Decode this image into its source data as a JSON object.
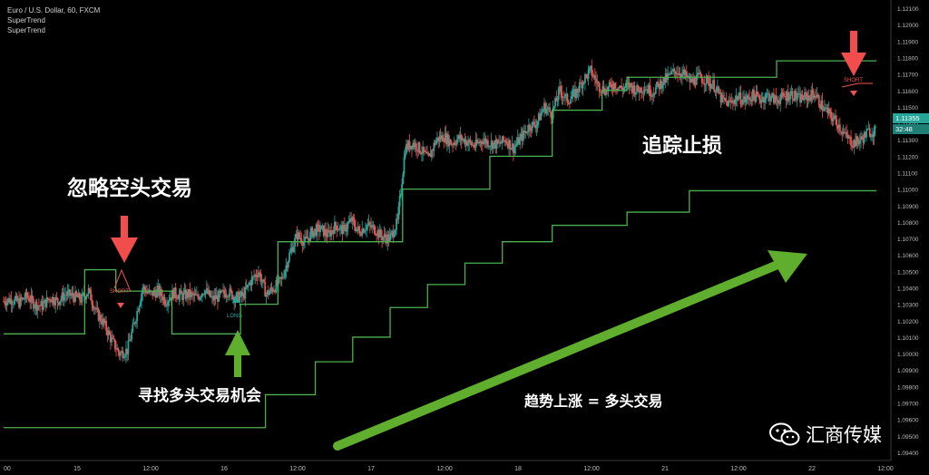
{
  "header": {
    "symbol_line": "Euro / U.S. Dollar, 60, FXCM",
    "indicators": [
      "SuperTrend",
      "SuperTrend"
    ]
  },
  "annotations": {
    "ignore_short": "忽略空头交易",
    "find_long": "寻找多头交易机会",
    "trailing_stop": "追踪止损",
    "trend_up": "趋势上涨 = 多头交易",
    "short_label_1": "SHORT",
    "long_label": "LONG",
    "short_label_2": "SHORT"
  },
  "price_tags": {
    "last_price": "1.11355",
    "countdown": "32:48"
  },
  "watermark": {
    "text": "汇商传媒",
    "icon": "wechat-icon"
  },
  "colors": {
    "background": "#000000",
    "up_candle": "#26a69a",
    "down_candle": "#ef5350",
    "supertrend": "#4caf50",
    "annotation_red": "#f24d4d",
    "annotation_green": "#5fae2e",
    "axis_text": "#bdbdbd"
  },
  "chart_data": {
    "type": "candlestick",
    "title": "Euro / U.S. Dollar, 60, FXCM",
    "y_ticks": [
      "1.12100",
      "1.12000",
      "1.11900",
      "1.11800",
      "1.11700",
      "1.11600",
      "1.11500",
      "1.11400",
      "1.11300",
      "1.11200",
      "1.11100",
      "1.11000",
      "1.10900",
      "1.10800",
      "1.10700",
      "1.10600",
      "1.10500",
      "1.10400",
      "1.10300",
      "1.10200",
      "1.10100",
      "1.10000",
      "1.09900",
      "1.09800",
      "1.09700",
      "1.09600",
      "1.09500",
      "1.09400"
    ],
    "ylim": [
      1.0935,
      1.1215
    ],
    "x_ticks": [
      "00",
      "15",
      "12:00",
      "16",
      "12:00",
      "17",
      "12:00",
      "18",
      "12:00",
      "21",
      "12:00",
      "22",
      "12:00"
    ],
    "last_price": 1.11355,
    "grid": false,
    "series": [
      {
        "name": "SuperTrend",
        "values": [
          [
            0,
            1.1012
          ],
          [
            12,
            1.1012
          ],
          [
            13,
            1.1051
          ],
          [
            18,
            1.1038
          ],
          [
            25,
            1.1038
          ],
          [
            27,
            1.1012
          ],
          [
            35,
            1.1012
          ],
          [
            38,
            1.103
          ],
          [
            44,
            1.1068
          ],
          [
            55,
            1.1068
          ],
          [
            64,
            1.11
          ],
          [
            78,
            1.112
          ],
          [
            88,
            1.1148
          ],
          [
            96,
            1.116
          ],
          [
            100,
            1.1168
          ],
          [
            112,
            1.1168
          ],
          [
            124,
            1.1178
          ],
          [
            140,
            1.1178
          ]
        ]
      },
      {
        "name": "SuperTrend",
        "values": [
          [
            0,
            1.0955
          ],
          [
            36,
            1.0955
          ],
          [
            42,
            1.0975
          ],
          [
            50,
            1.0995
          ],
          [
            56,
            1.101
          ],
          [
            62,
            1.1028
          ],
          [
            68,
            1.1042
          ],
          [
            74,
            1.1055
          ],
          [
            80,
            1.1068
          ],
          [
            88,
            1.1078
          ],
          [
            100,
            1.1086
          ],
          [
            110,
            1.1099
          ],
          [
            140,
            1.1099
          ]
        ]
      }
    ],
    "ohlc_profile": [
      1.1032,
      1.1033,
      1.1031,
      1.1035,
      1.103,
      1.1029,
      1.1034,
      1.1032,
      1.1036,
      1.1035,
      1.1033,
      1.1038,
      1.1025,
      1.1018,
      1.1008,
      1.1,
      1.1002,
      1.102,
      1.104,
      1.1036,
      1.1038,
      1.1032,
      1.1037,
      1.1035,
      1.1036,
      1.1034,
      1.1039,
      1.1033,
      1.1035,
      1.1038,
      1.1034,
      1.1035,
      1.1044,
      1.105,
      1.1036,
      1.104,
      1.1045,
      1.106,
      1.1072,
      1.1068,
      1.1074,
      1.1076,
      1.1072,
      1.1078,
      1.1075,
      1.1081,
      1.1074,
      1.1078,
      1.1076,
      1.1071,
      1.107,
      1.108,
      1.1125,
      1.1128,
      1.1124,
      1.1118,
      1.113,
      1.1132,
      1.1128,
      1.1131,
      1.1129,
      1.1126,
      1.113,
      1.1128,
      1.1127,
      1.113,
      1.1125,
      1.1131,
      1.1138,
      1.114,
      1.115,
      1.1146,
      1.116,
      1.1154,
      1.1158,
      1.1166,
      1.1172,
      1.1163,
      1.116,
      1.1164,
      1.1161,
      1.1163,
      1.116,
      1.1162,
      1.1159,
      1.1164,
      1.1168,
      1.1172,
      1.117,
      1.1165,
      1.1168,
      1.1166,
      1.1163,
      1.1154,
      1.1152,
      1.1156,
      1.1154,
      1.1157,
      1.1155,
      1.1157,
      1.1154,
      1.1156,
      1.1158,
      1.1155,
      1.1156,
      1.1158,
      1.115,
      1.1145,
      1.114,
      1.1132,
      1.1128,
      1.113,
      1.1135
    ]
  }
}
